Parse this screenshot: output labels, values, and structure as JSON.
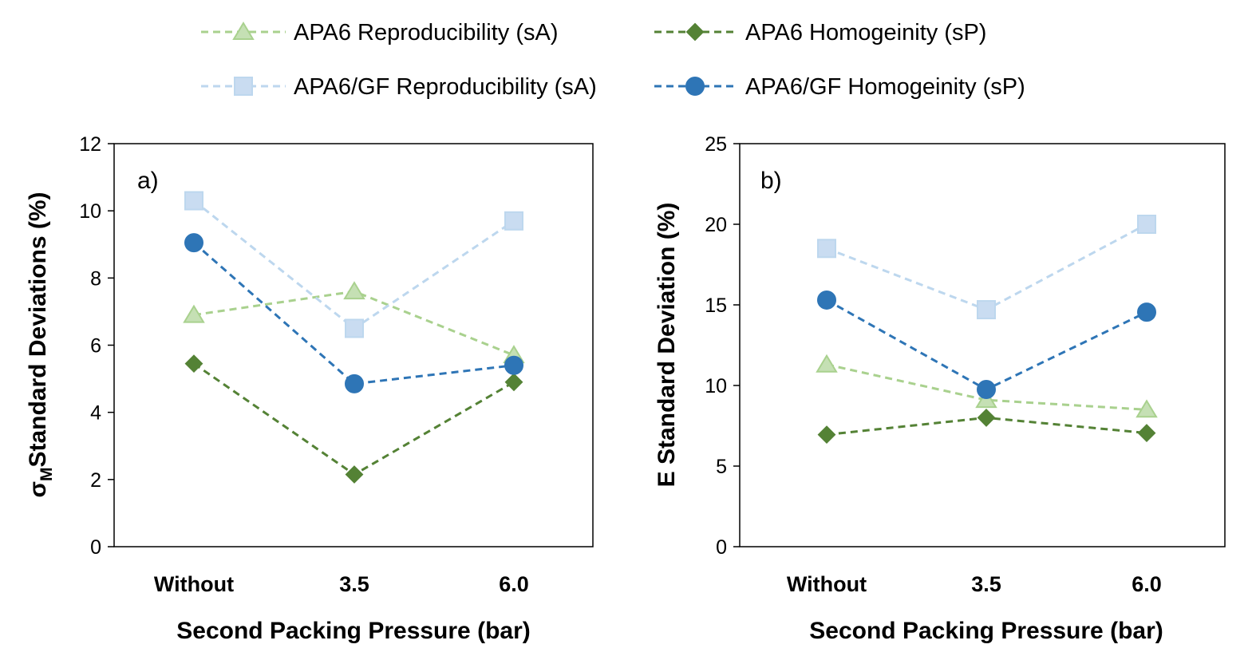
{
  "legend": [
    {
      "label": "APA6 Reproducibility (sA)",
      "color": "#a9d18e",
      "marker": "triangle",
      "fill": "#c5e0b4"
    },
    {
      "label": "APA6 Homogeinity (sP)",
      "color": "#548235",
      "marker": "diamond",
      "fill": "#548235"
    },
    {
      "label": "APA6/GF Reproducibility (sA)",
      "color": "#bdd7ee",
      "marker": "square",
      "fill": "#c9dcf1"
    },
    {
      "label": "APA6/GF Homogeinity (sP)",
      "color": "#2e75b6",
      "marker": "circle",
      "fill": "#2e75b6"
    }
  ],
  "chart_data": [
    {
      "type": "line",
      "panel_label": "a)",
      "title": "",
      "xlabel": "Second Packing Pressure (bar)",
      "ylabel_main": "σ",
      "ylabel_sub": "M",
      "ylabel_rest": "Standard Deviations (%)",
      "categories": [
        "Without",
        "3.5",
        "6.0"
      ],
      "ylim": [
        0,
        12
      ],
      "yticks": [
        "0",
        "2",
        "4",
        "6",
        "8",
        "10",
        "12"
      ],
      "grid": false,
      "series": [
        {
          "name": "APA6 Reproducibility (sA)",
          "values": [
            6.9,
            7.6,
            5.7
          ]
        },
        {
          "name": "APA6 Homogeinity (sP)",
          "values": [
            5.45,
            2.15,
            4.9
          ]
        },
        {
          "name": "APA6/GF Reproducibility (sA)",
          "values": [
            10.3,
            6.5,
            9.7
          ]
        },
        {
          "name": "APA6/GF Homogeinity (sP)",
          "values": [
            9.05,
            4.85,
            5.4
          ]
        }
      ]
    },
    {
      "type": "line",
      "panel_label": "b)",
      "title": "",
      "xlabel": "Second Packing Pressure (bar)",
      "ylabel": "E Standard Deviation (%)",
      "categories": [
        "Without",
        "3.5",
        "6.0"
      ],
      "ylim": [
        0,
        25
      ],
      "yticks": [
        "0",
        "5",
        "10",
        "15",
        "20",
        "25"
      ],
      "grid": false,
      "series": [
        {
          "name": "APA6 Reproducibility (sA)",
          "values": [
            11.3,
            9.1,
            8.5
          ]
        },
        {
          "name": "APA6 Homogeinity (sP)",
          "values": [
            6.95,
            8.0,
            7.05
          ]
        },
        {
          "name": "APA6/GF Reproducibility (sA)",
          "values": [
            18.5,
            14.7,
            20.0
          ]
        },
        {
          "name": "APA6/GF Homogeinity (sP)",
          "values": [
            15.3,
            9.75,
            14.55
          ]
        }
      ]
    }
  ]
}
